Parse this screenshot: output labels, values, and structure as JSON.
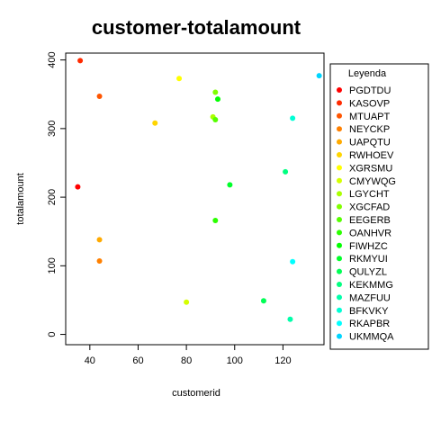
{
  "chart_data": {
    "type": "scatter",
    "title": "customer-totalamount",
    "xlabel": "customerid",
    "ylabel": "totalamount",
    "xlim": [
      30,
      137
    ],
    "ylim": [
      -15,
      410
    ],
    "xticks": [
      40,
      60,
      80,
      100,
      120
    ],
    "yticks": [
      0,
      100,
      200,
      300,
      400
    ],
    "grid": false,
    "legend": {
      "title": "Leyenda",
      "placement": "right"
    },
    "series": [
      {
        "name": "PGDTDU",
        "color": "#FF0000",
        "x": 35,
        "y": 215
      },
      {
        "name": "KASOVP",
        "color": "#FF2A00",
        "x": 36,
        "y": 399
      },
      {
        "name": "MTUAPT",
        "color": "#FF5500",
        "x": 44,
        "y": 347
      },
      {
        "name": "NEYCKP",
        "color": "#FF8000",
        "x": 44,
        "y": 107
      },
      {
        "name": "UAPQTU",
        "color": "#FFAA00",
        "x": 44,
        "y": 138
      },
      {
        "name": "RWHOEV",
        "color": "#FFD500",
        "x": 67,
        "y": 308
      },
      {
        "name": "XGRSMU",
        "color": "#FFFF00",
        "x": 77,
        "y": 373
      },
      {
        "name": "CMYWQG",
        "color": "#D5FF00",
        "x": 80,
        "y": 47
      },
      {
        "name": "LGYCHT",
        "color": "#AAFF00",
        "x": 91,
        "y": 317
      },
      {
        "name": "XGCFAD",
        "color": "#80FF00",
        "x": 92,
        "y": 353
      },
      {
        "name": "EEGERB",
        "color": "#55FF00",
        "x": 92,
        "y": 313
      },
      {
        "name": "OANHVR",
        "color": "#2BFF00",
        "x": 92,
        "y": 166
      },
      {
        "name": "FIWHZC",
        "color": "#00FF00",
        "x": 93,
        "y": 343
      },
      {
        "name": "RKMYUI",
        "color": "#00FF2A",
        "x": 98,
        "y": 218
      },
      {
        "name": "QULYZL",
        "color": "#00FF55",
        "x": 112,
        "y": 49
      },
      {
        "name": "KEKMMG",
        "color": "#00FF80",
        "x": 121,
        "y": 237
      },
      {
        "name": "MAZFUU",
        "color": "#00FFAA",
        "x": 123,
        "y": 22
      },
      {
        "name": "BFKVKY",
        "color": "#00FFD5",
        "x": 124,
        "y": 315
      },
      {
        "name": "RKAPBR",
        "color": "#00FFFF",
        "x": 124,
        "y": 106
      },
      {
        "name": "UKMMQA",
        "color": "#00D5FF",
        "x": 135,
        "y": 377
      }
    ]
  }
}
